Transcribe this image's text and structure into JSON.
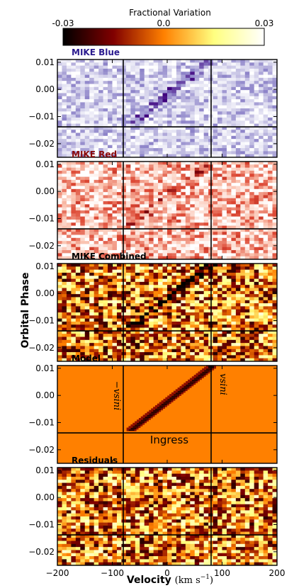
{
  "colorbar": {
    "label": "Fractional Variation",
    "tick_labels": [
      "-0.03",
      "0.0",
      "0.03"
    ],
    "range": [
      -0.03,
      0.03
    ]
  },
  "axes": {
    "ylabel": "Orbital Phase",
    "xlabel_main": "Velocity",
    "xlabel_unit": "(km s",
    "xlabel_exp": "−1",
    "xlabel_close": ")",
    "x_ticks": [
      -200,
      -100,
      0,
      100,
      200
    ],
    "x_tick_labels": [
      "−200",
      "−100",
      "0",
      "100",
      "200"
    ],
    "y_ticks": [
      0.01,
      0.0,
      -0.01,
      -0.02
    ],
    "y_tick_labels": [
      "0.01",
      "0.00",
      "−0.01",
      "−0.02"
    ]
  },
  "model_labels": {
    "neg_vsini": "−vsini",
    "pos_vsini": "vsini",
    "ingress": "Ingress"
  },
  "chart_data": [
    {
      "type": "heatmap",
      "title": "MIKE Blue",
      "title_color": "#2b1b8f",
      "colormap": "Purples",
      "xlim": [
        -200,
        200
      ],
      "ylim": [
        -0.025,
        0.011
      ],
      "vlines": [
        -80,
        80
      ],
      "hlines": [
        -0.0138
      ],
      "nx": 48,
      "ny": 32,
      "seed": 11,
      "noise": 0.35,
      "signal": 0.55
    },
    {
      "type": "heatmap",
      "title": "MIKE Red",
      "title_color": "#8b0a0a",
      "colormap": "Reds",
      "xlim": [
        -200,
        200
      ],
      "ylim": [
        -0.025,
        0.011
      ],
      "vlines": [
        -80,
        80
      ],
      "hlines": [
        -0.0138
      ],
      "nx": 48,
      "ny": 32,
      "seed": 23,
      "noise": 0.4,
      "signal": 0.35
    },
    {
      "type": "heatmap",
      "title": "MIKE Combined",
      "title_color": "#000000",
      "colormap": "afmhot",
      "xlim": [
        -200,
        200
      ],
      "ylim": [
        -0.025,
        0.011
      ],
      "vlines": [
        -80,
        80
      ],
      "hlines": [
        -0.0138
      ],
      "nx": 48,
      "ny": 32,
      "seed": 37,
      "noise": 0.42,
      "signal": 0.5
    },
    {
      "type": "heatmap",
      "title": "Model",
      "title_color": "#000000",
      "colormap": "afmhot",
      "xlim": [
        -200,
        200
      ],
      "ylim": [
        -0.025,
        0.011
      ],
      "vlines": [
        -80,
        80
      ],
      "hlines": [
        -0.0138
      ],
      "track": {
        "v_start": -65,
        "phase_start": -0.0125,
        "v_end": 80,
        "phase_end": 0.0105
      }
    },
    {
      "type": "heatmap",
      "title": "Residuals",
      "title_color": "#000000",
      "colormap": "afmhot",
      "xlim": [
        -200,
        200
      ],
      "ylim": [
        -0.025,
        0.011
      ],
      "vlines": [
        -80,
        80
      ],
      "hlines": [
        -0.0138
      ],
      "nx": 48,
      "ny": 32,
      "seed": 53,
      "noise": 0.42,
      "signal": 0.0
    }
  ]
}
